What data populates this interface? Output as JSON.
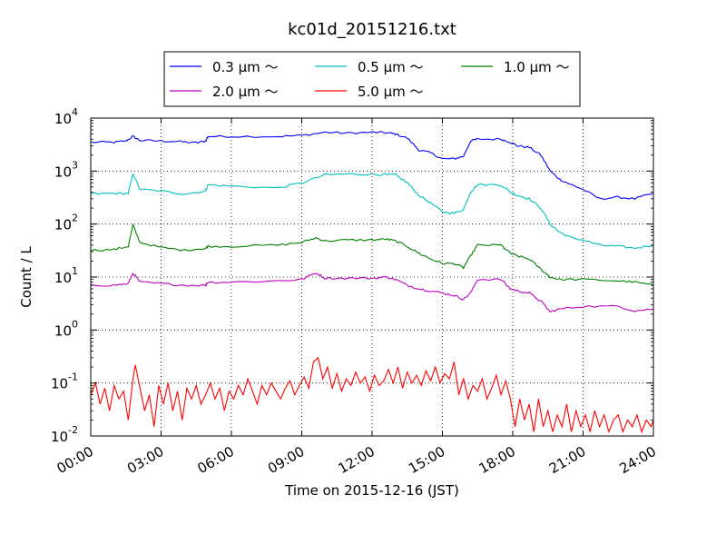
{
  "chart_data": {
    "type": "line",
    "title": "kc01d_20151216.txt",
    "xlabel": "Time on 2015-12-16 (JST)",
    "ylabel": "Count / L",
    "x_unit": "hours",
    "xlim": [
      0,
      24
    ],
    "ylim": [
      0.01,
      10000
    ],
    "yscale": "log",
    "grid": true,
    "legend_placement": "top-center",
    "x_tick_labels": [
      "00:00",
      "03:00",
      "06:00",
      "09:00",
      "12:00",
      "15:00",
      "18:00",
      "21:00",
      "24:00"
    ],
    "y_tick_labels": [
      {
        "base": "10",
        "exp": "-2"
      },
      {
        "base": "10",
        "exp": "-1"
      },
      {
        "base": "10",
        "exp": "0"
      },
      {
        "base": "10",
        "exp": "1"
      },
      {
        "base": "10",
        "exp": "2"
      },
      {
        "base": "10",
        "exp": "3"
      },
      {
        "base": "10",
        "exp": "4"
      }
    ],
    "series": [
      {
        "name": "0.3 μm ～",
        "color": "#0000ff",
        "points": [
          [
            0,
            3500
          ],
          [
            1.0,
            3500
          ],
          [
            1.5,
            3700
          ],
          [
            1.8,
            4500
          ],
          [
            2.1,
            3800
          ],
          [
            3.0,
            3700
          ],
          [
            3.8,
            3600
          ],
          [
            4.5,
            3400
          ],
          [
            4.9,
            3700
          ],
          [
            5.0,
            4500
          ],
          [
            6.0,
            4500
          ],
          [
            8.0,
            4500
          ],
          [
            9.0,
            4700
          ],
          [
            10.0,
            5400
          ],
          [
            11.0,
            5200
          ],
          [
            12.0,
            5400
          ],
          [
            12.6,
            5300
          ],
          [
            13.0,
            5000
          ],
          [
            13.5,
            4200
          ],
          [
            14.0,
            2500
          ],
          [
            14.5,
            2200
          ],
          [
            15.0,
            1700
          ],
          [
            15.5,
            1700
          ],
          [
            15.9,
            1900
          ],
          [
            16.2,
            3700
          ],
          [
            16.5,
            4000
          ],
          [
            17.5,
            4000
          ],
          [
            17.9,
            3500
          ],
          [
            18.2,
            3000
          ],
          [
            18.7,
            2800
          ],
          [
            19.2,
            2000
          ],
          [
            19.6,
            1000
          ],
          [
            20.0,
            700
          ],
          [
            20.5,
            550
          ],
          [
            21.0,
            450
          ],
          [
            21.7,
            300
          ],
          [
            22.5,
            320
          ],
          [
            23.2,
            300
          ],
          [
            24,
            380
          ]
        ]
      },
      {
        "name": "0.5 μm ～",
        "color": "#00bfbf",
        "points": [
          [
            0,
            370
          ],
          [
            1.0,
            380
          ],
          [
            1.6,
            380
          ],
          [
            1.8,
            900
          ],
          [
            2.1,
            450
          ],
          [
            3.0,
            420
          ],
          [
            4.0,
            370
          ],
          [
            4.9,
            420
          ],
          [
            5.0,
            550
          ],
          [
            6.0,
            520
          ],
          [
            8.0,
            480
          ],
          [
            9.0,
            600
          ],
          [
            10.0,
            850
          ],
          [
            11.0,
            880
          ],
          [
            12.0,
            870
          ],
          [
            12.6,
            850
          ],
          [
            13.0,
            850
          ],
          [
            13.5,
            600
          ],
          [
            14.0,
            350
          ],
          [
            14.5,
            250
          ],
          [
            15.0,
            170
          ],
          [
            15.5,
            160
          ],
          [
            15.9,
            190
          ],
          [
            16.2,
            400
          ],
          [
            16.5,
            550
          ],
          [
            17.5,
            550
          ],
          [
            17.9,
            400
          ],
          [
            18.2,
            350
          ],
          [
            18.7,
            300
          ],
          [
            19.2,
            200
          ],
          [
            19.6,
            100
          ],
          [
            20.0,
            70
          ],
          [
            20.5,
            55
          ],
          [
            21.0,
            50
          ],
          [
            21.7,
            40
          ],
          [
            22.5,
            38
          ],
          [
            23.2,
            35
          ],
          [
            24,
            40
          ]
        ]
      },
      {
        "name": "1.0 μm ～",
        "color": "#008000",
        "points": [
          [
            0,
            32
          ],
          [
            1.0,
            33
          ],
          [
            1.6,
            38
          ],
          [
            1.8,
            95
          ],
          [
            2.1,
            45
          ],
          [
            3.0,
            36
          ],
          [
            4.0,
            32
          ],
          [
            4.9,
            35
          ],
          [
            5.0,
            38
          ],
          [
            6.0,
            38
          ],
          [
            8.0,
            40
          ],
          [
            9.0,
            45
          ],
          [
            9.6,
            55
          ],
          [
            10.0,
            48
          ],
          [
            11.0,
            50
          ],
          [
            12.0,
            50
          ],
          [
            12.6,
            52
          ],
          [
            13.0,
            48
          ],
          [
            13.5,
            38
          ],
          [
            14.0,
            28
          ],
          [
            14.5,
            22
          ],
          [
            15.0,
            18
          ],
          [
            15.5,
            18
          ],
          [
            15.9,
            15
          ],
          [
            16.2,
            25
          ],
          [
            16.5,
            40
          ],
          [
            17.5,
            40
          ],
          [
            17.9,
            28
          ],
          [
            18.2,
            25
          ],
          [
            18.7,
            22
          ],
          [
            19.2,
            14
          ],
          [
            19.6,
            10
          ],
          [
            20.0,
            9
          ],
          [
            21.0,
            9
          ],
          [
            22.5,
            8.5
          ],
          [
            23.2,
            8
          ],
          [
            24,
            7
          ]
        ]
      },
      {
        "name": "2.0 μm ～",
        "color": "#bf00bf",
        "points": [
          [
            0,
            7
          ],
          [
            1.0,
            7
          ],
          [
            1.6,
            7.5
          ],
          [
            1.8,
            12
          ],
          [
            2.1,
            8
          ],
          [
            3.0,
            7.5
          ],
          [
            4.0,
            7
          ],
          [
            4.9,
            7
          ],
          [
            5.0,
            8
          ],
          [
            6.0,
            8
          ],
          [
            8.0,
            8.5
          ],
          [
            9.0,
            9
          ],
          [
            9.6,
            12
          ],
          [
            10.0,
            9.5
          ],
          [
            11.0,
            9.5
          ],
          [
            12.0,
            9.5
          ],
          [
            12.6,
            10
          ],
          [
            13.0,
            9
          ],
          [
            13.5,
            7
          ],
          [
            14.0,
            6
          ],
          [
            14.5,
            5.5
          ],
          [
            15.0,
            5
          ],
          [
            15.5,
            4.5
          ],
          [
            15.9,
            3.8
          ],
          [
            16.2,
            5
          ],
          [
            16.5,
            9
          ],
          [
            17.5,
            9
          ],
          [
            17.9,
            6
          ],
          [
            18.2,
            5.5
          ],
          [
            18.7,
            5
          ],
          [
            19.2,
            3.5
          ],
          [
            19.6,
            2.2
          ],
          [
            20.0,
            2.5
          ],
          [
            21.0,
            2.8
          ],
          [
            22.5,
            2.8
          ],
          [
            23.2,
            2.3
          ],
          [
            24,
            2.5
          ]
        ]
      },
      {
        "name": "5.0 μm ～",
        "color": "#ff0000",
        "points": [
          [
            0,
            0.06
          ],
          [
            0.2,
            0.1
          ],
          [
            0.4,
            0.04
          ],
          [
            0.6,
            0.08
          ],
          [
            0.8,
            0.03
          ],
          [
            1.0,
            0.09
          ],
          [
            1.2,
            0.05
          ],
          [
            1.4,
            0.07
          ],
          [
            1.6,
            0.02
          ],
          [
            1.8,
            0.12
          ],
          [
            1.9,
            0.22
          ],
          [
            2.1,
            0.08
          ],
          [
            2.3,
            0.03
          ],
          [
            2.5,
            0.06
          ],
          [
            2.7,
            0.015
          ],
          [
            2.9,
            0.09
          ],
          [
            3.1,
            0.04
          ],
          [
            3.3,
            0.1
          ],
          [
            3.5,
            0.03
          ],
          [
            3.7,
            0.07
          ],
          [
            3.9,
            0.02
          ],
          [
            4.1,
            0.08
          ],
          [
            4.3,
            0.05
          ],
          [
            4.5,
            0.09
          ],
          [
            4.7,
            0.04
          ],
          [
            4.9,
            0.06
          ],
          [
            5.1,
            0.1
          ],
          [
            5.3,
            0.05
          ],
          [
            5.5,
            0.08
          ],
          [
            5.7,
            0.03
          ],
          [
            5.9,
            0.07
          ],
          [
            6.1,
            0.05
          ],
          [
            6.3,
            0.09
          ],
          [
            6.5,
            0.06
          ],
          [
            6.7,
            0.12
          ],
          [
            6.9,
            0.07
          ],
          [
            7.1,
            0.04
          ],
          [
            7.3,
            0.09
          ],
          [
            7.5,
            0.06
          ],
          [
            7.7,
            0.1
          ],
          [
            7.9,
            0.07
          ],
          [
            8.1,
            0.05
          ],
          [
            8.3,
            0.08
          ],
          [
            8.5,
            0.11
          ],
          [
            8.7,
            0.06
          ],
          [
            8.9,
            0.09
          ],
          [
            9.1,
            0.13
          ],
          [
            9.3,
            0.08
          ],
          [
            9.5,
            0.25
          ],
          [
            9.7,
            0.3
          ],
          [
            9.9,
            0.12
          ],
          [
            10.1,
            0.2
          ],
          [
            10.3,
            0.08
          ],
          [
            10.5,
            0.15
          ],
          [
            10.7,
            0.07
          ],
          [
            10.9,
            0.12
          ],
          [
            11.1,
            0.09
          ],
          [
            11.3,
            0.16
          ],
          [
            11.5,
            0.1
          ],
          [
            11.7,
            0.13
          ],
          [
            11.9,
            0.07
          ],
          [
            12.1,
            0.14
          ],
          [
            12.3,
            0.09
          ],
          [
            12.5,
            0.11
          ],
          [
            12.7,
            0.18
          ],
          [
            12.9,
            0.1
          ],
          [
            13.1,
            0.2
          ],
          [
            13.3,
            0.08
          ],
          [
            13.5,
            0.16
          ],
          [
            13.7,
            0.1
          ],
          [
            13.9,
            0.14
          ],
          [
            14.1,
            0.09
          ],
          [
            14.3,
            0.17
          ],
          [
            14.5,
            0.11
          ],
          [
            14.7,
            0.2
          ],
          [
            14.9,
            0.1
          ],
          [
            15.1,
            0.15
          ],
          [
            15.3,
            0.12
          ],
          [
            15.5,
            0.25
          ],
          [
            15.7,
            0.06
          ],
          [
            15.9,
            0.12
          ],
          [
            16.1,
            0.05
          ],
          [
            16.3,
            0.09
          ],
          [
            16.5,
            0.07
          ],
          [
            16.7,
            0.12
          ],
          [
            16.9,
            0.05
          ],
          [
            17.1,
            0.08
          ],
          [
            17.3,
            0.14
          ],
          [
            17.5,
            0.06
          ],
          [
            17.7,
            0.11
          ],
          [
            17.9,
            0.05
          ],
          [
            18.1,
            0.015
          ],
          [
            18.3,
            0.05
          ],
          [
            18.5,
            0.02
          ],
          [
            18.7,
            0.04
          ],
          [
            18.9,
            0.012
          ],
          [
            19.1,
            0.05
          ],
          [
            19.3,
            0.015
          ],
          [
            19.5,
            0.03
          ],
          [
            19.7,
            0.012
          ],
          [
            19.9,
            0.025
          ],
          [
            20.1,
            0.015
          ],
          [
            20.3,
            0.04
          ],
          [
            20.5,
            0.012
          ],
          [
            20.7,
            0.03
          ],
          [
            20.9,
            0.015
          ],
          [
            21.1,
            0.025
          ],
          [
            21.3,
            0.012
          ],
          [
            21.5,
            0.03
          ],
          [
            21.7,
            0.015
          ],
          [
            21.9,
            0.025
          ],
          [
            22.1,
            0.012
          ],
          [
            22.3,
            0.02
          ],
          [
            22.5,
            0.025
          ],
          [
            22.7,
            0.012
          ],
          [
            22.9,
            0.02
          ],
          [
            23.1,
            0.015
          ],
          [
            23.3,
            0.025
          ],
          [
            23.5,
            0.012
          ],
          [
            23.7,
            0.02
          ],
          [
            23.9,
            0.015
          ],
          [
            24,
            0.02
          ]
        ]
      }
    ]
  }
}
